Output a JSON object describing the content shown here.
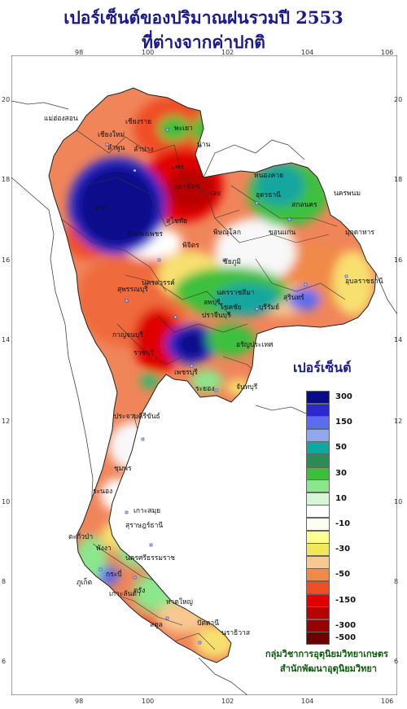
{
  "title_line1": "เปอร์เซ็นต์ของปริมาณฝนรวมปี 2553",
  "title_line2": "ที่ต่างจากค่าปกติ",
  "axis": {
    "lon_ticks": [
      "98",
      "100",
      "102",
      "104",
      "106"
    ],
    "lat_ticks": [
      "20",
      "18",
      "16",
      "14",
      "12",
      "10",
      "8",
      "6"
    ]
  },
  "legend": {
    "title": "เปอร์เซ็นต์",
    "items": [
      {
        "label": "300",
        "color": "#0a0a8c"
      },
      {
        "label": "",
        "color": "#2a2ad0"
      },
      {
        "label": "150",
        "color": "#5c6cf0"
      },
      {
        "label": "",
        "color": "#8fa8ee"
      },
      {
        "label": "50",
        "color": "#12a6a0"
      },
      {
        "label": "",
        "color": "#2c8c54"
      },
      {
        "label": "30",
        "color": "#3cc03c"
      },
      {
        "label": "",
        "color": "#8ce68c"
      },
      {
        "label": "10",
        "color": "#d6f6d6"
      },
      {
        "label": "",
        "color": "#ffffff"
      },
      {
        "label": "-10",
        "color": "#fffff0"
      },
      {
        "label": "",
        "color": "#ffff90"
      },
      {
        "label": "-30",
        "color": "#f0e858"
      },
      {
        "label": "",
        "color": "#f8c890"
      },
      {
        "label": "-50",
        "color": "#f08a4a"
      },
      {
        "label": "",
        "color": "#f04e26"
      },
      {
        "label": "-150",
        "color": "#e00000"
      },
      {
        "label": "",
        "color": "#b80000"
      },
      {
        "label": "-300",
        "color": "#980000"
      },
      {
        "label": "-500",
        "color": "#6a0000"
      }
    ]
  },
  "places": [
    "เชียงราย",
    "แม่ฮ่องสอน",
    "พะเยา",
    "เชียงใหม่",
    "ลำพูน",
    "น่าน",
    "ลำปาง",
    "แพร่",
    "อุตรดิตถ์",
    "หนองคาย",
    "อุดรธานี",
    "สกลนคร",
    "นครพนม",
    "เลย",
    "ตาก",
    "สุโขทัย",
    "พิษณุโลก",
    "ขอนแก่น",
    "มุกดาหาร",
    "กำแพงเพชร",
    "พิจิตร",
    "ชัยภูมิ",
    "อุบลราชธานี",
    "นครสวรรค์",
    "นครราชสีมา",
    "ลพบุรี",
    "สุรินทร์",
    "สุพรรณบุรี",
    "โชคชัย",
    "บุรีรัมย์",
    "กาญจนบุรี",
    "ปราจีนบุรี",
    "อรัญประเทศ",
    "ราชบุรี",
    "เพชรบุรี",
    "ระยอง",
    "จันทบุรี",
    "ประจวบคีรีขันธ์",
    "ชุมพร",
    "ระนอง",
    "เกาะสมุย",
    "สุราษฎร์ธานี",
    "ตะกั่วป่า",
    "พังงา",
    "ภูเก็ต",
    "นครศรีธรรมราช",
    "กระบี่",
    "เกาะลันตา",
    "ตรัง",
    "หาดใหญ่",
    "สตูล",
    "ปัตตานี",
    "นราธิวาส"
  ],
  "credit": {
    "line1": "กลุ่มวิชาการอุตุนิยมวิทยาเกษตร",
    "line2": "สำนักพัฒนาอุตุนิยมวิทยา"
  },
  "colors": {
    "title": "#1a1a8c",
    "credit": "#0b5c0b"
  }
}
